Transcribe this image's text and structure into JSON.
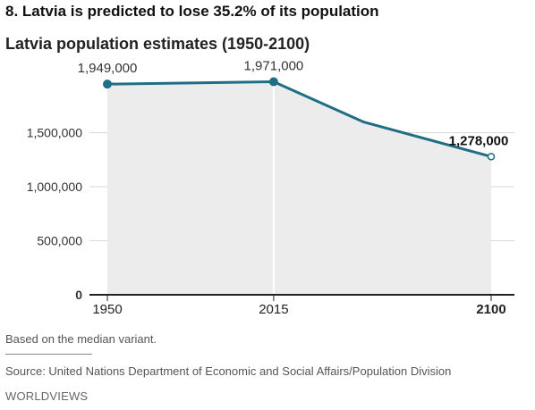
{
  "headline": "8. Latvia is predicted to lose 35.2% of its population",
  "note": "Based on the median variant.",
  "source": "Source: United Nations Department of Economic and Social Affairs/Population Division",
  "brand": "WORLDVIEWS",
  "colors": {
    "line": "#1f6e86",
    "area": "#ececec",
    "grid": "#d9d9d9",
    "axis": "#222222",
    "marker_fill_highlight": "#ffffff"
  },
  "chart_data": {
    "type": "area",
    "title": "Latvia population estimates (1950-2100)",
    "xlabel": "",
    "ylabel": "",
    "x": [
      1950,
      2015,
      2050,
      2100
    ],
    "values": [
      1949000,
      1971000,
      1600000,
      1278000
    ],
    "ylim": [
      0,
      2000000
    ],
    "yticks": [
      0,
      500000,
      1000000,
      1500000
    ],
    "ytick_labels": [
      "0",
      "500,000",
      "1,000,000",
      "1,500,000"
    ],
    "xticks": [
      1950,
      2015,
      2100
    ],
    "xtick_labels": [
      "1950",
      "2015",
      "2100"
    ],
    "annotations": [
      {
        "x": 1950,
        "y": 1949000,
        "label": "1,949,000",
        "bold": false
      },
      {
        "x": 2015,
        "y": 1971000,
        "label": "1,971,000",
        "bold": false
      },
      {
        "x": 2100,
        "y": 1278000,
        "label": "1,278,000",
        "bold": true
      }
    ],
    "grid": true
  }
}
